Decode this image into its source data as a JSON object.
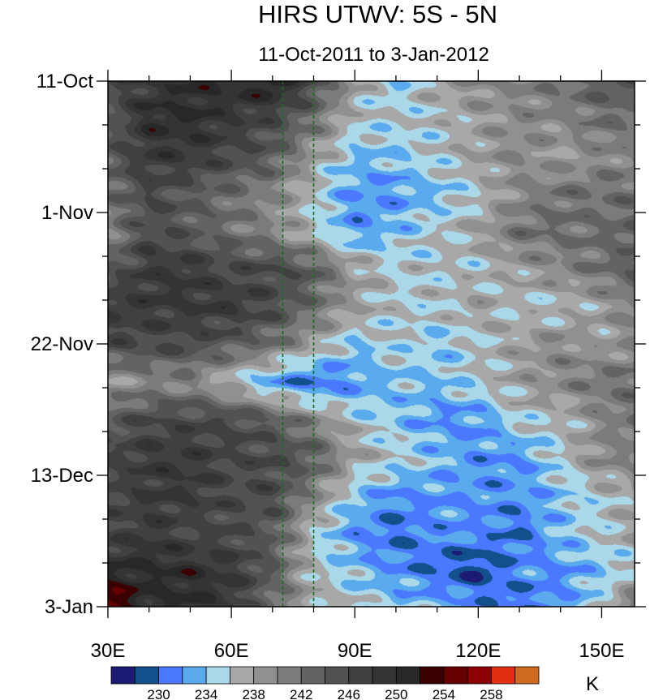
{
  "title": "HIRS UTWV: 5S - 5N",
  "subtitle": "11-Oct-2011 to 3-Jan-2012",
  "chart_data": {
    "type": "heatmap",
    "title": "HIRS UTWV: 5S - 5N",
    "subtitle": "11-Oct-2011 to 3-Jan-2012",
    "xlabel": "",
    "ylabel": "",
    "xlim": [
      30,
      158
    ],
    "ylim_days": [
      0,
      84
    ],
    "x_ticks": [
      {
        "v": 30,
        "label": "30E"
      },
      {
        "v": 60,
        "label": "60E"
      },
      {
        "v": 90,
        "label": "90E"
      },
      {
        "v": 120,
        "label": "120E"
      },
      {
        "v": 150,
        "label": "150E"
      }
    ],
    "y_ticks": [
      {
        "v": 0,
        "label": "11-Oct"
      },
      {
        "v": 21,
        "label": "1-Nov"
      },
      {
        "v": 42,
        "label": "22-Nov"
      },
      {
        "v": 63,
        "label": "13-Dec"
      },
      {
        "v": 84,
        "label": "3-Jan"
      }
    ],
    "reference_lines_lon": [
      72.5,
      80
    ],
    "reference_line_color": "#1a6b1a",
    "units": "K",
    "levels": [
      228,
      230,
      232,
      234,
      236,
      238,
      240,
      242,
      244,
      246,
      248,
      250,
      252,
      254,
      256,
      258,
      260
    ],
    "level_labels": [
      "230",
      "234",
      "238",
      "242",
      "246",
      "250",
      "254",
      "258"
    ],
    "colors": [
      "#1c1a72",
      "#12508c",
      "#4a78ff",
      "#5aaaee",
      "#aad8e8",
      "#a8a8a8",
      "#909090",
      "#7b7b7b",
      "#636363",
      "#525252",
      "#404040",
      "#343434",
      "#282828",
      "#3a0000",
      "#660000",
      "#8b0000",
      "#e03010",
      "#d06a20"
    ],
    "lon": [
      30,
      40,
      50,
      60,
      70,
      80,
      90,
      100,
      110,
      120,
      130,
      140,
      150,
      160
    ],
    "days": [
      0,
      6,
      12,
      18,
      24,
      30,
      36,
      42,
      48,
      54,
      60,
      66,
      72,
      78,
      84
    ],
    "values": [
      [
        246,
        248,
        250,
        250,
        252,
        246,
        238,
        234,
        238,
        240,
        240,
        242,
        244,
        244
      ],
      [
        244,
        250,
        250,
        248,
        246,
        242,
        236,
        236,
        236,
        238,
        240,
        240,
        242,
        242
      ],
      [
        244,
        248,
        248,
        246,
        244,
        238,
        234,
        234,
        236,
        238,
        240,
        238,
        240,
        240
      ],
      [
        242,
        246,
        244,
        242,
        240,
        236,
        232,
        232,
        234,
        236,
        240,
        242,
        242,
        242
      ],
      [
        240,
        246,
        244,
        242,
        240,
        236,
        232,
        234,
        236,
        238,
        242,
        242,
        242,
        244
      ],
      [
        244,
        248,
        248,
        246,
        246,
        244,
        238,
        236,
        236,
        236,
        238,
        240,
        242,
        244
      ],
      [
        248,
        248,
        248,
        248,
        246,
        242,
        238,
        236,
        236,
        238,
        236,
        236,
        238,
        242
      ],
      [
        246,
        246,
        246,
        244,
        242,
        238,
        234,
        236,
        234,
        236,
        238,
        240,
        238,
        240
      ],
      [
        238,
        240,
        240,
        236,
        232,
        230,
        232,
        234,
        234,
        236,
        238,
        240,
        242,
        242
      ],
      [
        244,
        246,
        246,
        246,
        244,
        240,
        236,
        234,
        232,
        232,
        236,
        236,
        240,
        242
      ],
      [
        246,
        248,
        248,
        246,
        246,
        244,
        238,
        236,
        234,
        232,
        232,
        236,
        240,
        240
      ],
      [
        246,
        248,
        248,
        246,
        246,
        240,
        234,
        232,
        232,
        232,
        232,
        234,
        236,
        238
      ],
      [
        246,
        248,
        246,
        246,
        244,
        236,
        232,
        230,
        232,
        232,
        230,
        234,
        236,
        238
      ],
      [
        250,
        250,
        250,
        248,
        244,
        236,
        234,
        232,
        230,
        228,
        232,
        232,
        234,
        236
      ],
      [
        256,
        250,
        250,
        248,
        242,
        238,
        236,
        234,
        234,
        232,
        230,
        232,
        236,
        244
      ]
    ]
  }
}
